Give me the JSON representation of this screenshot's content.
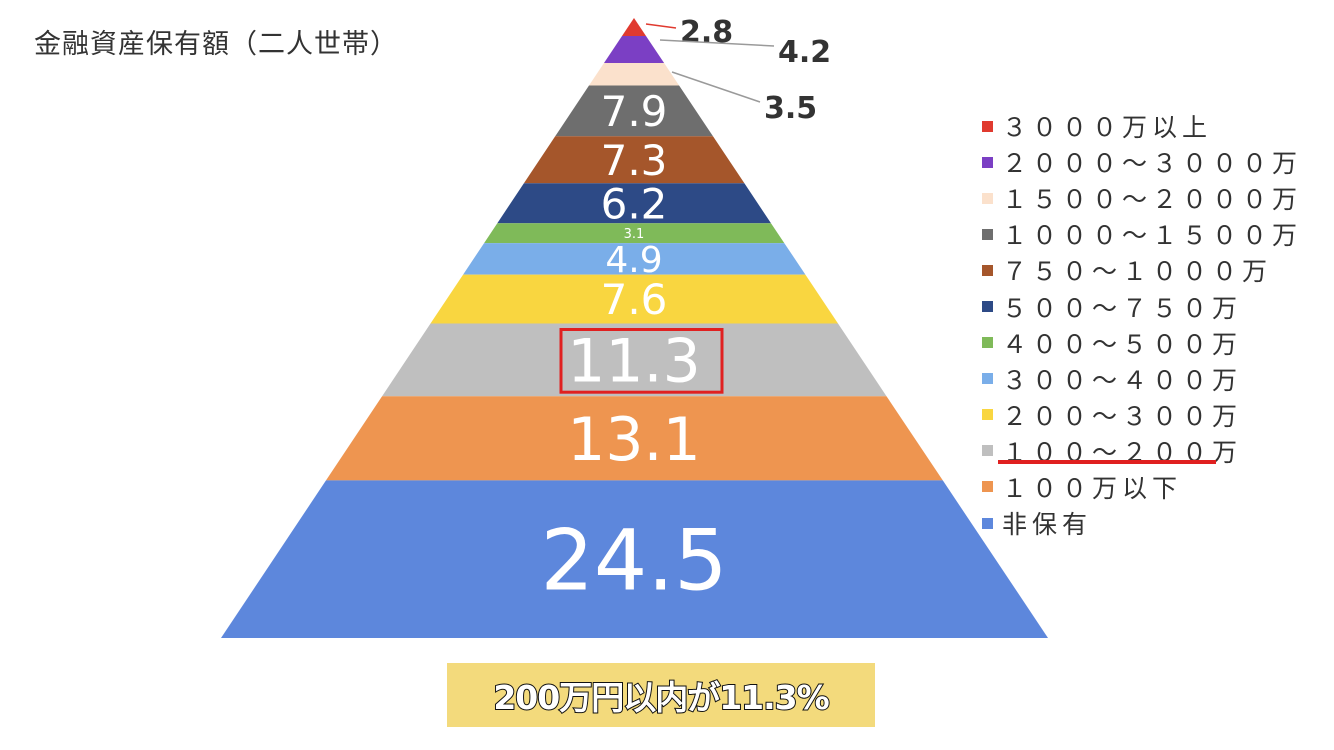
{
  "chart_data": {
    "type": "pyramid",
    "title": "金融資産保有額（二人世帯）",
    "segments": [
      {
        "category": "３０００万以上",
        "value": 2.8,
        "color": "#e03a2f"
      },
      {
        "category": "２０００～３０００万",
        "value": 4.2,
        "color": "#7b3fc4"
      },
      {
        "category": "１５００～２０００万",
        "value": 3.5,
        "color": "#fbe1cc"
      },
      {
        "category": "１０００～１５００万",
        "value": 7.9,
        "color": "#6e6e6e"
      },
      {
        "category": "７５０～１０００万",
        "value": 7.3,
        "color": "#a5562b"
      },
      {
        "category": "５００～７５０万",
        "value": 6.2,
        "color": "#2d4a86"
      },
      {
        "category": "４００～５００万",
        "value": 3.1,
        "color": "#7fba59"
      },
      {
        "category": "３００～４００万",
        "value": 4.9,
        "color": "#7aaee9"
      },
      {
        "category": "２００～３００万",
        "value": 7.6,
        "color": "#f9d640"
      },
      {
        "category": "１００～２００万",
        "value": 11.3,
        "color": "#bfbfbf"
      },
      {
        "category": "１００万以下",
        "value": 13.1,
        "color": "#ee9550"
      },
      {
        "category": "非保有",
        "value": 24.5,
        "color": "#5d87dc"
      }
    ],
    "highlight": {
      "category": "１００～２００万",
      "value": 11.3,
      "color": "#e02020"
    },
    "legend_position": "right"
  },
  "caption": "200万円以内が11.3%"
}
